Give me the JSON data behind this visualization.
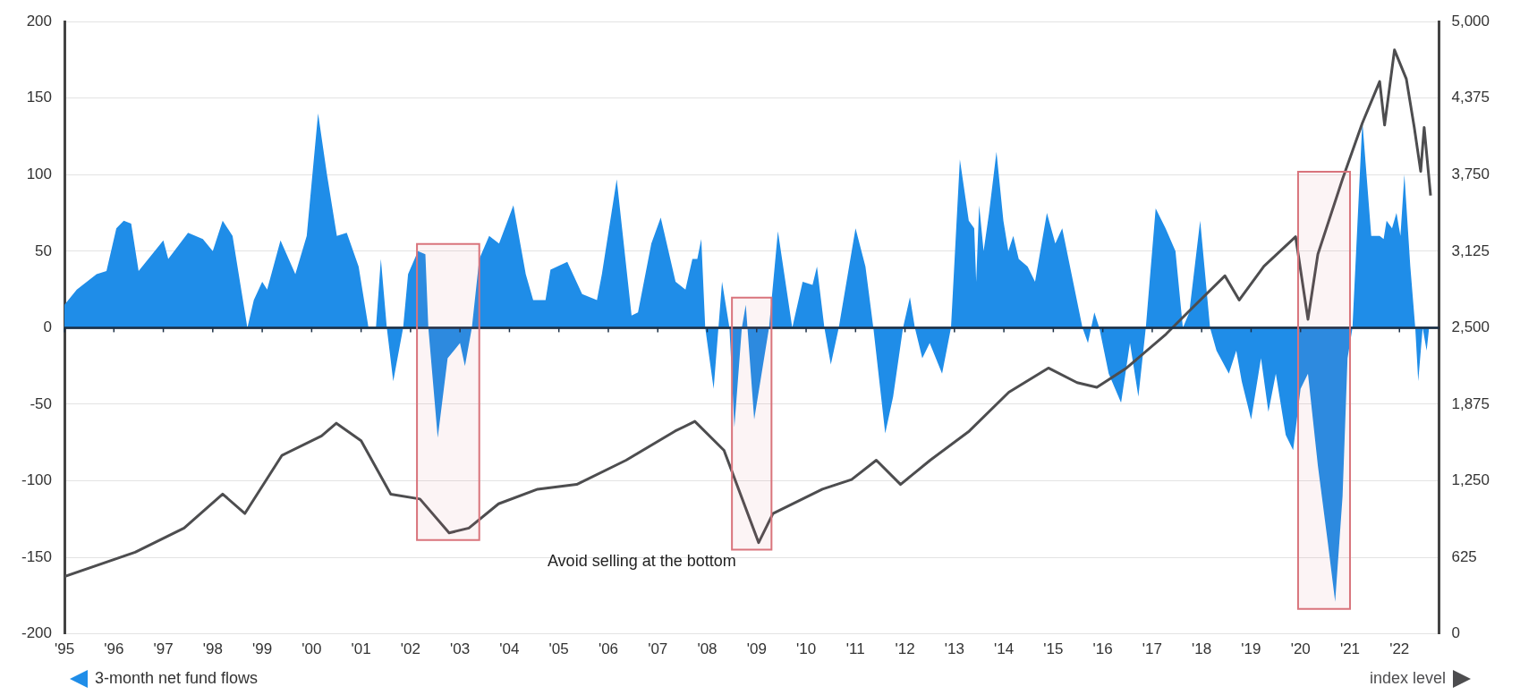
{
  "chart_data": {
    "type": "area",
    "xlim": [
      1995,
      2022.8
    ],
    "xticks": [
      {
        "value": 1995,
        "label": "'95"
      },
      {
        "value": 1996,
        "label": "'96"
      },
      {
        "value": 1997,
        "label": "'97"
      },
      {
        "value": 1998,
        "label": "'98"
      },
      {
        "value": 1999,
        "label": "'99"
      },
      {
        "value": 2000,
        "label": "'00"
      },
      {
        "value": 2001,
        "label": "'01"
      },
      {
        "value": 2002,
        "label": "'02"
      },
      {
        "value": 2003,
        "label": "'03"
      },
      {
        "value": 2004,
        "label": "'04"
      },
      {
        "value": 2005,
        "label": "'05"
      },
      {
        "value": 2006,
        "label": "'06"
      },
      {
        "value": 2007,
        "label": "'07"
      },
      {
        "value": 2008,
        "label": "'08"
      },
      {
        "value": 2009,
        "label": "'09"
      },
      {
        "value": 2010,
        "label": "'10"
      },
      {
        "value": 2011,
        "label": "'11"
      },
      {
        "value": 2012,
        "label": "'12"
      },
      {
        "value": 2013,
        "label": "'13"
      },
      {
        "value": 2014,
        "label": "'14"
      },
      {
        "value": 2015,
        "label": "'15"
      },
      {
        "value": 2016,
        "label": "'16"
      },
      {
        "value": 2017,
        "label": "'17"
      },
      {
        "value": 2018,
        "label": "'18"
      },
      {
        "value": 2019,
        "label": "'19"
      },
      {
        "value": 2020,
        "label": "'20"
      },
      {
        "value": 2021,
        "label": "'21"
      },
      {
        "value": 2022,
        "label": "'22"
      }
    ],
    "ylim": [
      -200,
      200
    ],
    "yticks": [
      -200,
      -150,
      -100,
      -50,
      0,
      50,
      100,
      150,
      200
    ],
    "y2lim": [
      0,
      5000
    ],
    "y2ticks": [
      0,
      625,
      {
        "value": 1250,
        "label": "1,250"
      },
      {
        "value": 1875,
        "label": "1,875"
      },
      {
        "value": 2500,
        "label": "2,500"
      },
      {
        "value": 3125,
        "label": "3,125"
      },
      {
        "value": 3750,
        "label": "3,750"
      },
      {
        "value": 4375,
        "label": "4,375"
      },
      {
        "value": 5000,
        "label": "5,000"
      }
    ],
    "grid": "y",
    "legend": "bottom",
    "series": [
      {
        "name": "3-month net fund flows",
        "color": "#1f8de8",
        "x": [
          1995.0,
          1995.25,
          1995.65,
          1995.85,
          1996.05,
          1996.2,
          1996.35,
          1996.5,
          1997.0,
          1997.1,
          1997.5,
          1997.8,
          1998.0,
          1998.2,
          1998.4,
          1998.7,
          1998.83,
          1999.0,
          1999.1,
          1999.37,
          1999.67,
          1999.9,
          2000.13,
          2000.31,
          2000.51,
          2000.71,
          2000.95,
          2001.15,
          2001.3,
          2001.4,
          2001.52,
          2001.65,
          2001.85,
          2001.95,
          2002.15,
          2002.3,
          2002.36,
          2002.55,
          2002.75,
          2003.0,
          2003.1,
          2003.24,
          2003.39,
          2003.59,
          2003.79,
          2004.08,
          2004.33,
          2004.48,
          2004.73,
          2004.83,
          2005.17,
          2005.47,
          2005.77,
          2005.87,
          2006.17,
          2006.47,
          2006.6,
          2006.87,
          2007.06,
          2007.36,
          2007.56,
          2007.7,
          2007.8,
          2007.88,
          2007.96,
          2008.13,
          2008.3,
          2008.45,
          2008.55,
          2008.7,
          2008.78,
          2008.95,
          2009.1,
          2009.25,
          2009.43,
          2009.72,
          2009.93,
          2010.13,
          2010.22,
          2010.37,
          2010.5,
          2010.66,
          2011.0,
          2011.2,
          2011.36,
          2011.6,
          2011.76,
          2011.96,
          2012.1,
          2012.2,
          2012.35,
          2012.5,
          2012.75,
          2012.93,
          2013.11,
          2013.29,
          2013.4,
          2013.44,
          2013.5,
          2013.59,
          2013.7,
          2013.85,
          2013.99,
          2014.09,
          2014.19,
          2014.3,
          2014.48,
          2014.63,
          2014.87,
          2015.04,
          2015.18,
          2015.59,
          2015.7,
          2015.83,
          2015.93,
          2016.12,
          2016.37,
          2016.55,
          2016.72,
          2016.87,
          2017.07,
          2017.27,
          2017.47,
          2017.62,
          2017.75,
          2017.97,
          2018.17,
          2018.3,
          2018.55,
          2018.7,
          2018.81,
          2019.0,
          2019.2,
          2019.35,
          2019.5,
          2019.7,
          2019.85,
          2020.0,
          2020.15,
          2020.35,
          2020.55,
          2020.7,
          2020.85,
          2020.95,
          2021.05,
          2021.25,
          2021.43,
          2021.6,
          2021.68,
          2021.74,
          2021.85,
          2021.94,
          2022.02,
          2022.1,
          2022.22,
          2022.32,
          2022.38,
          2022.47,
          2022.55,
          2022.6
        ],
        "values": [
          15,
          25,
          35,
          37,
          65,
          70,
          68,
          37,
          57,
          45,
          62,
          58,
          50,
          70,
          60,
          0,
          18,
          30,
          25,
          57,
          35,
          60,
          140,
          100,
          60,
          62,
          40,
          0,
          0,
          45,
          0,
          -35,
          0,
          35,
          50,
          48,
          0,
          -72,
          -20,
          -10,
          -25,
          0,
          45,
          60,
          55,
          80,
          35,
          18,
          18,
          38,
          43,
          22,
          18,
          35,
          97,
          8,
          10,
          55,
          72,
          30,
          25,
          45,
          45,
          58,
          0,
          -40,
          30,
          0,
          -65,
          0,
          15,
          -60,
          -30,
          0,
          63,
          0,
          30,
          28,
          40,
          0,
          -24,
          0,
          65,
          40,
          0,
          -69,
          -45,
          0,
          20,
          0,
          -20,
          -10,
          -30,
          0,
          110,
          70,
          65,
          30,
          80,
          50,
          75,
          115,
          70,
          50,
          60,
          45,
          40,
          30,
          75,
          55,
          65,
          0,
          -10,
          10,
          0,
          -30,
          -49,
          -10,
          -45,
          0,
          78,
          65,
          50,
          0,
          10,
          70,
          0,
          -15,
          -30,
          -15,
          -35,
          -60,
          -20,
          -55,
          -30,
          -70,
          -80,
          -40,
          -30,
          -90,
          -140,
          -179,
          -110,
          -20,
          0,
          135,
          60,
          60,
          58,
          70,
          65,
          75,
          60,
          100,
          40,
          0,
          -35,
          0,
          -15,
          0
        ]
      },
      {
        "name": "index level",
        "type": "line",
        "color": "#4d4d4f",
        "axis": "y2",
        "x": [
          1995.0,
          1996.43,
          1997.42,
          1998.2,
          1998.65,
          1999.4,
          2000.2,
          2000.5,
          2001.0,
          2001.6,
          2002.19,
          2002.78,
          2003.18,
          2003.78,
          2004.57,
          2005.36,
          2006.36,
          2007.35,
          2007.75,
          2008.34,
          2009.04,
          2009.33,
          2010.33,
          2010.92,
          2011.42,
          2011.91,
          2012.51,
          2013.3,
          2014.1,
          2014.9,
          2015.48,
          2015.88,
          2016.48,
          2017.28,
          2017.87,
          2018.47,
          2018.76,
          2019.26,
          2019.9,
          2020.15,
          2020.35,
          2020.85,
          2021.25,
          2021.6,
          2021.7,
          2021.9,
          2022.14,
          2022.3,
          2022.43,
          2022.5,
          2022.63
        ],
        "values": [
          468,
          666,
          864,
          1141,
          983,
          1458,
          1616,
          1720,
          1577,
          1141,
          1101,
          824,
          864,
          1062,
          1181,
          1220,
          1418,
          1656,
          1735,
          1498,
          745,
          983,
          1181,
          1260,
          1418,
          1220,
          1418,
          1656,
          1973,
          2171,
          2052,
          2013,
          2171,
          2448,
          2686,
          2924,
          2726,
          3003,
          3243,
          2569,
          3100,
          3716,
          4172,
          4511,
          4155,
          4769,
          4531,
          4136,
          3777,
          4136,
          3579
        ]
      }
    ],
    "ref_lines": [
      {
        "axis": "y",
        "value": 0,
        "color": "#1b2f45"
      }
    ],
    "bands": [
      {
        "axis": "x",
        "from": 2002.13,
        "to": 2003.39,
        "color": "#d9747c"
      },
      {
        "axis": "x",
        "from": 2008.5,
        "to": 2009.3,
        "color": "#d9747c"
      },
      {
        "axis": "x",
        "from": 2019.95,
        "to": 2021.0,
        "color": "#d9747c"
      }
    ],
    "annotations": [
      "Avoid selling at the bottom"
    ]
  }
}
